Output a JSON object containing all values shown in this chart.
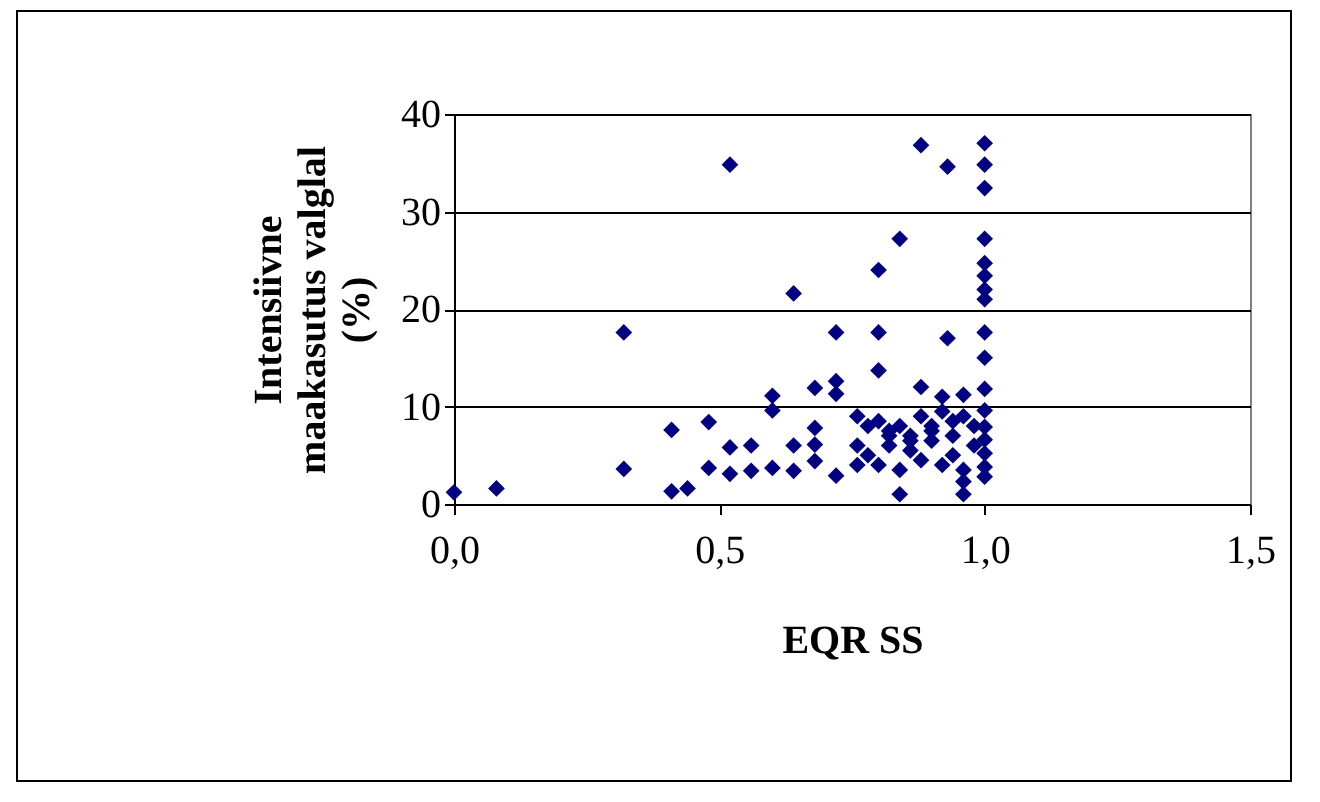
{
  "chart_data": {
    "type": "scatter",
    "xlabel": "EQR SS",
    "ylabel": "Intensiivne maakasutus valglal (%)",
    "x": [
      0,
      0.08,
      0.32,
      0.32,
      0.52,
      0.41,
      0.41,
      0.44,
      0.48,
      0.48,
      0.52,
      0.52,
      0.56,
      0.56,
      0.6,
      0.6,
      0.6,
      0.64,
      0.64,
      0.64,
      0.68,
      0.68,
      0.68,
      0.68,
      0.72,
      0.72,
      0.72,
      0.72,
      0.76,
      0.76,
      0.76,
      1,
      1,
      1,
      1,
      1,
      1,
      1,
      1,
      1,
      1,
      1,
      1,
      1,
      1,
      1,
      1,
      1,
      0.88,
      0.93,
      0.84,
      0.8,
      0.8,
      0.93,
      0.8,
      0.88,
      0.92,
      0.96,
      0.84,
      0.96,
      0.96,
      0.78,
      0.8,
      0.82,
      0.84,
      0.86,
      0.88,
      0.9,
      0.92,
      0.94,
      0.96,
      0.78,
      0.82,
      0.86,
      0.9,
      0.94,
      0.98,
      0.8,
      0.84,
      0.88,
      0.92,
      0.96,
      0.82,
      0.86,
      0.9,
      0.94,
      0.98
    ],
    "values": [
      1.2,
      1.6,
      17.6,
      3.6,
      34.8,
      7.6,
      1.3,
      1.6,
      8.4,
      3.7,
      5.8,
      3.1,
      6,
      3.4,
      11.1,
      9.6,
      3.7,
      21.6,
      6,
      3.4,
      7.8,
      6.1,
      4.4,
      11.9,
      17.6,
      12.6,
      11.3,
      2.9,
      9,
      6,
      4,
      37,
      34.8,
      32.4,
      27.2,
      24.7,
      23.4,
      22,
      21,
      17.6,
      15,
      11.8,
      9.6,
      7.9,
      6.6,
      5.2,
      3.8,
      2.8,
      36.8,
      34.6,
      27.2,
      24,
      17.6,
      17,
      13.7,
      12,
      11,
      11.2,
      1,
      1,
      2.3,
      8,
      8.5,
      7.5,
      8,
      7,
      9,
      8,
      9.5,
      8.5,
      9,
      5,
      6,
      5.5,
      6.5,
      5,
      6,
      4,
      3.5,
      4.5,
      4,
      3.5,
      7,
      6.5,
      7.5,
      7,
      8
    ],
    "color": "#000080",
    "marker": "diamond",
    "xlim": [
      0,
      1.5
    ],
    "xticks": [
      {
        "value": 0,
        "label": "0,0"
      },
      {
        "value": 0.5,
        "label": "0,5"
      },
      {
        "value": 1,
        "label": "1,0"
      },
      {
        "value": 1.5,
        "label": "1,5"
      }
    ],
    "ylim": [
      0,
      40
    ],
    "yticks": [
      0,
      10,
      20,
      30,
      40
    ],
    "grid": "y"
  }
}
